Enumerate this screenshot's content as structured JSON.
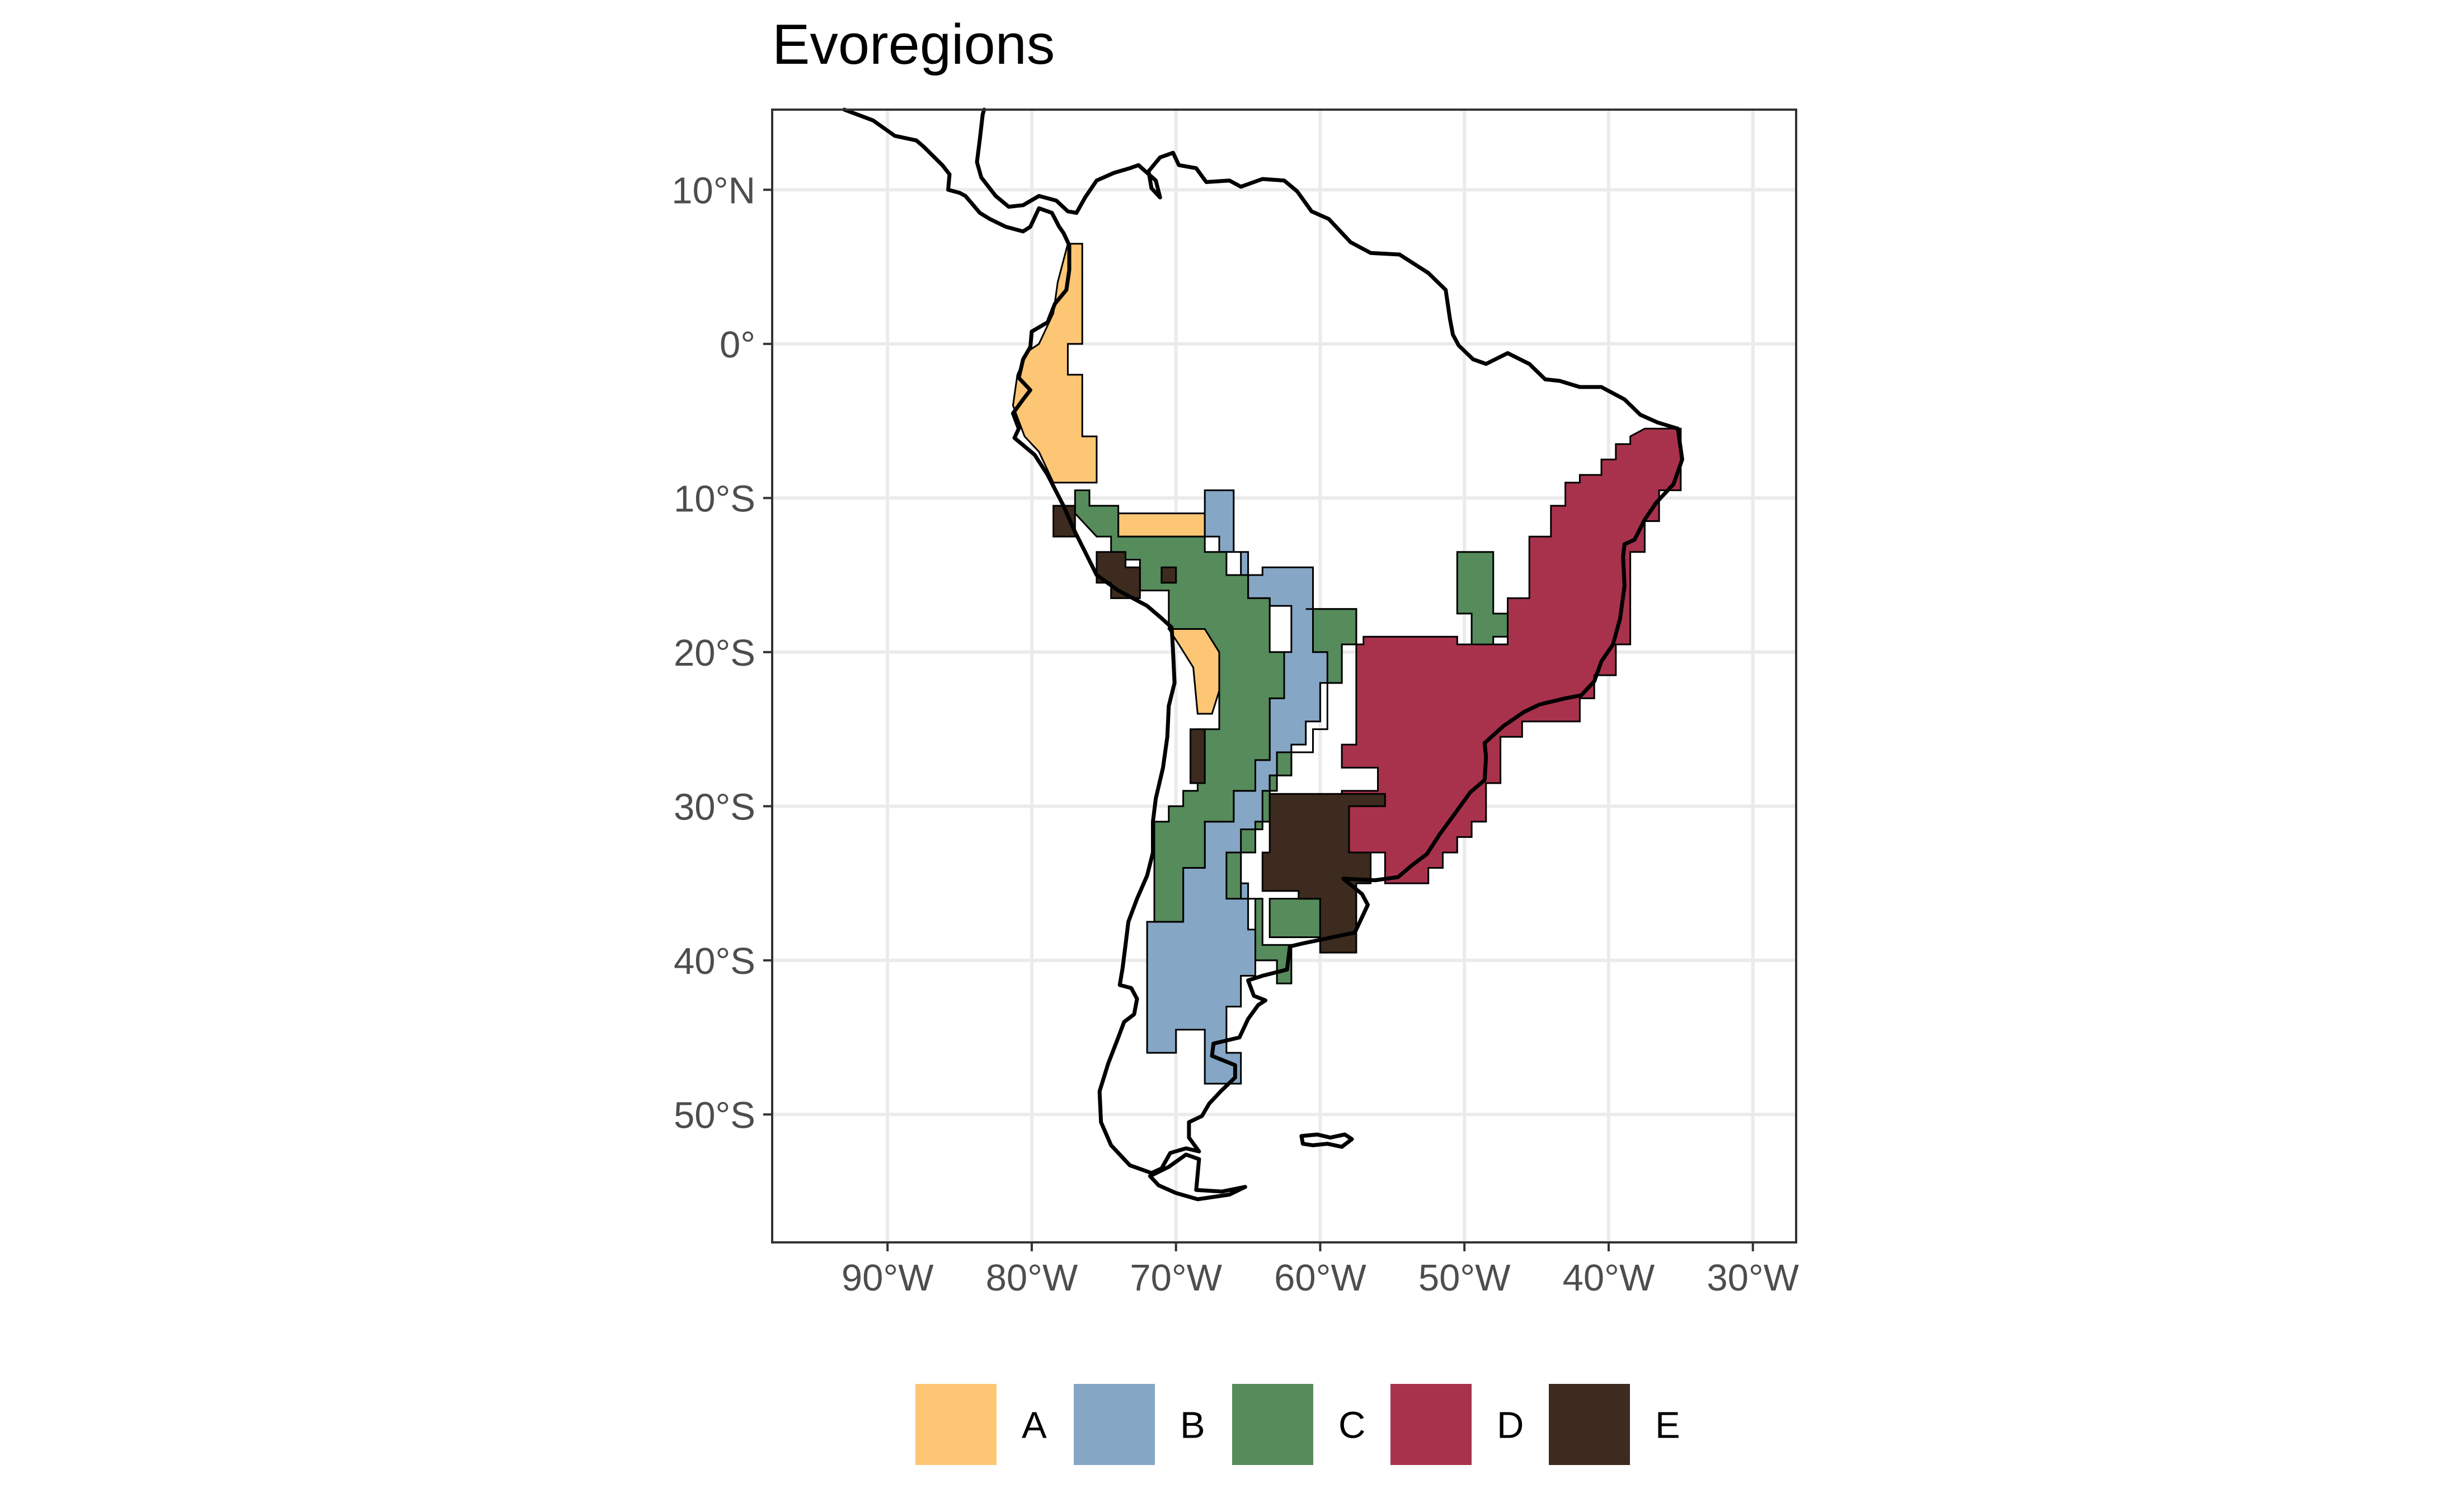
{
  "title": "Evoregions",
  "map": {
    "lon_range": [
      -98,
      -27
    ],
    "lat_range": [
      -58.3,
      15.2
    ],
    "x_ticks": [
      {
        "value": -90,
        "label": "90°W"
      },
      {
        "value": -80,
        "label": "80°W"
      },
      {
        "value": -70,
        "label": "70°W"
      },
      {
        "value": -60,
        "label": "60°W"
      },
      {
        "value": -50,
        "label": "50°W"
      },
      {
        "value": -40,
        "label": "40°W"
      },
      {
        "value": -30,
        "label": "30°W"
      }
    ],
    "y_ticks": [
      {
        "value": 10,
        "label": "10°N"
      },
      {
        "value": 0,
        "label": "0°"
      },
      {
        "value": -10,
        "label": "10°S"
      },
      {
        "value": -20,
        "label": "20°S"
      },
      {
        "value": -30,
        "label": "30°S"
      },
      {
        "value": -40,
        "label": "40°S"
      },
      {
        "value": -50,
        "label": "50°S"
      }
    ],
    "grid": true,
    "legend_position": "bottom",
    "regions": [
      {
        "name": "A",
        "color": "#FDC675"
      },
      {
        "name": "B",
        "color": "#85A6C4"
      },
      {
        "name": "C",
        "color": "#568B5B"
      },
      {
        "name": "D",
        "color": "#A8324C"
      },
      {
        "name": "E",
        "color": "#3C2B1E"
      }
    ]
  }
}
